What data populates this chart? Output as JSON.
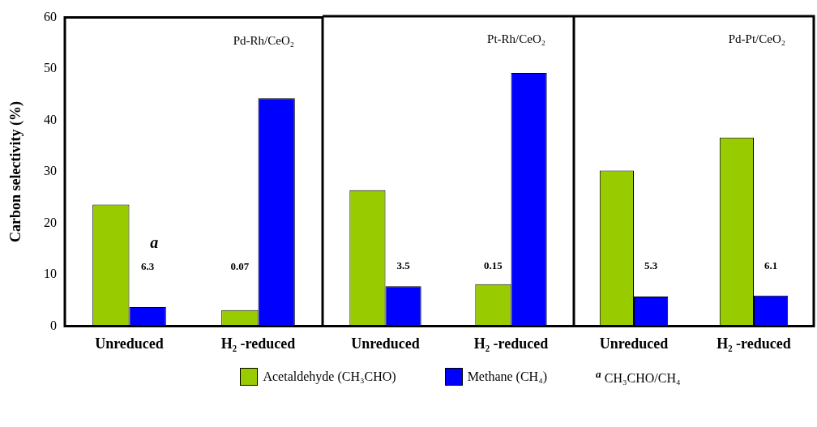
{
  "chart_data": [
    {
      "type": "bar",
      "title": "Pd-Rh/CeO₂",
      "ylabel": "Carbon selectivity (%)",
      "categories": [
        "Unreduced",
        "H₂ -reduced"
      ],
      "series": [
        {
          "name": "Acetaldehyde (CH₃CHO)",
          "color": "#99cc00",
          "values": [
            23.6,
            3.1
          ]
        },
        {
          "name": "Methane (CH₄)",
          "color": "#0000ff",
          "values": [
            3.7,
            44.3
          ]
        }
      ],
      "ylim": [
        0,
        60
      ],
      "yticks": [
        0,
        10,
        20,
        30,
        40,
        50,
        60
      ],
      "legend": "bottom",
      "annotations": [
        {
          "text": "6.3",
          "x": "Unreduced",
          "y": 11.5
        },
        {
          "text": "0.07",
          "x": "H₂ -reduced",
          "y": 11.5
        },
        {
          "text": "a",
          "x": "Unreduced",
          "y": 16
        },
        "$^{a}$ CH₃CHO/CH₄"
      ]
    },
    {
      "type": "bar",
      "title": "Pt-Rh/CeO₂",
      "categories": [
        "Unreduced",
        "H₂ -reduced"
      ],
      "series": [
        {
          "color": "#99cc00",
          "values": [
            26.3,
            8.1
          ]
        },
        {
          "color": "#0000ff",
          "values": [
            7.7,
            49.0
          ]
        }
      ],
      "ylim": [
        0,
        60
      ],
      "yticks": [
        0,
        10,
        20,
        30,
        40,
        50,
        60
      ],
      "tick_labels": "x",
      "annotations": [
        {
          "text": "3.5",
          "x": "Unreduced",
          "y": 11.5
        },
        {
          "text": "0.15",
          "x": "H₂ -reduced",
          "y": 11.5
        }
      ]
    },
    {
      "type": "bar",
      "title": "Pd-Pt/CeO₂",
      "categories": [
        "Unreduced",
        "H₂ -reduced"
      ],
      "series": [
        {
          "color": "#99cc00",
          "values": [
            30.1,
            36.5
          ]
        },
        {
          "color": "#0000ff",
          "values": [
            5.7,
            5.9
          ]
        }
      ],
      "ylim": [
        0,
        60
      ],
      "yticks": [
        0,
        10,
        20,
        30,
        40,
        50,
        60
      ],
      "tick_labels": "x",
      "annotations": [
        {
          "text": "5.3",
          "x": "Unreduced",
          "y": 11.5
        },
        {
          "text": "6.1",
          "x": "H₂ -reduced",
          "y": 11.5
        }
      ]
    }
  ]
}
